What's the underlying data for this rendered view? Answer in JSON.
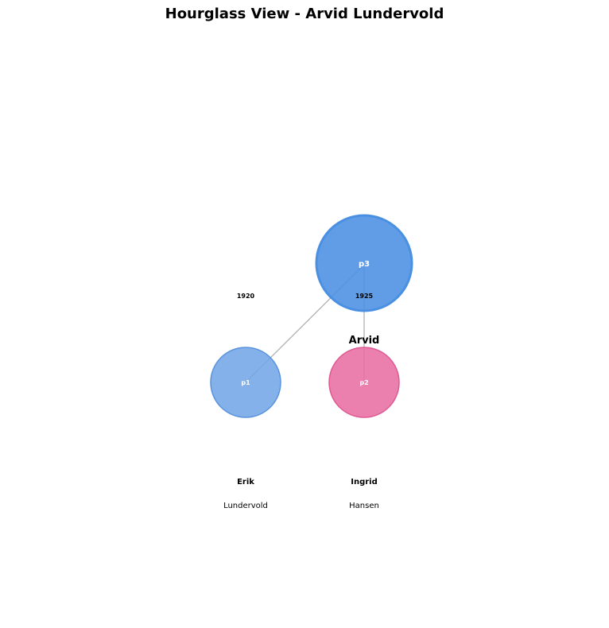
{
  "title": "Hourglass View - Arvid Lundervold",
  "colors": {
    "focus_fill": "#4a90e2",
    "male_fill": "#6fa3e6",
    "female_fill": "#e8689f",
    "edge": "#9e9e9e"
  },
  "nodes": {
    "p3": {
      "id": "p3",
      "first_name": "Arvid",
      "last_name": "",
      "year": "",
      "role": "focus",
      "sex": "male"
    },
    "p1": {
      "id": "p1",
      "first_name": "Erik",
      "last_name": "Lundervold",
      "year": "1920",
      "role": "parent",
      "sex": "male"
    },
    "p2": {
      "id": "p2",
      "first_name": "Ingrid",
      "last_name": "Hansen",
      "year": "1925",
      "role": "parent",
      "sex": "female"
    }
  },
  "edges": [
    {
      "from": "p3",
      "to": "p1"
    },
    {
      "from": "p3",
      "to": "p2"
    }
  ]
}
